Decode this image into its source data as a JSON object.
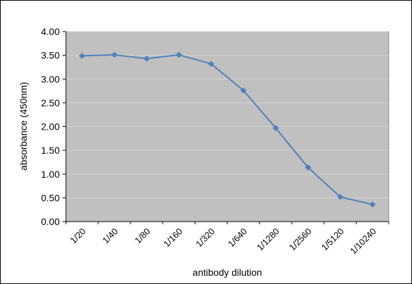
{
  "chart_data": {
    "type": "line",
    "title": "",
    "xlabel": "antibody dilution",
    "ylabel": "absorbance (450nm)",
    "categories": [
      "1/20",
      "1/40",
      "1/80",
      "1/160",
      "1/320",
      "1/640",
      "1/1280",
      "1/2560",
      "1/5120",
      "1/10240"
    ],
    "values": [
      3.49,
      3.51,
      3.43,
      3.51,
      3.32,
      2.76,
      1.97,
      1.14,
      0.52,
      0.36
    ],
    "ylim": [
      0,
      4.0
    ],
    "ytick_step": 0.5,
    "ytick_labels": [
      "0.00",
      "0.50",
      "1.00",
      "1.50",
      "2.00",
      "2.50",
      "3.00",
      "3.50",
      "4.00"
    ],
    "grid": true,
    "legend": "none",
    "marker": "diamond",
    "line_color": "#4f81bd",
    "marker_color": "#4f81bd",
    "plot_bg": "#c0c0c0",
    "grid_color": "#d4d4d4",
    "plot_border_color": "#808080",
    "axis_color": "#000000"
  }
}
